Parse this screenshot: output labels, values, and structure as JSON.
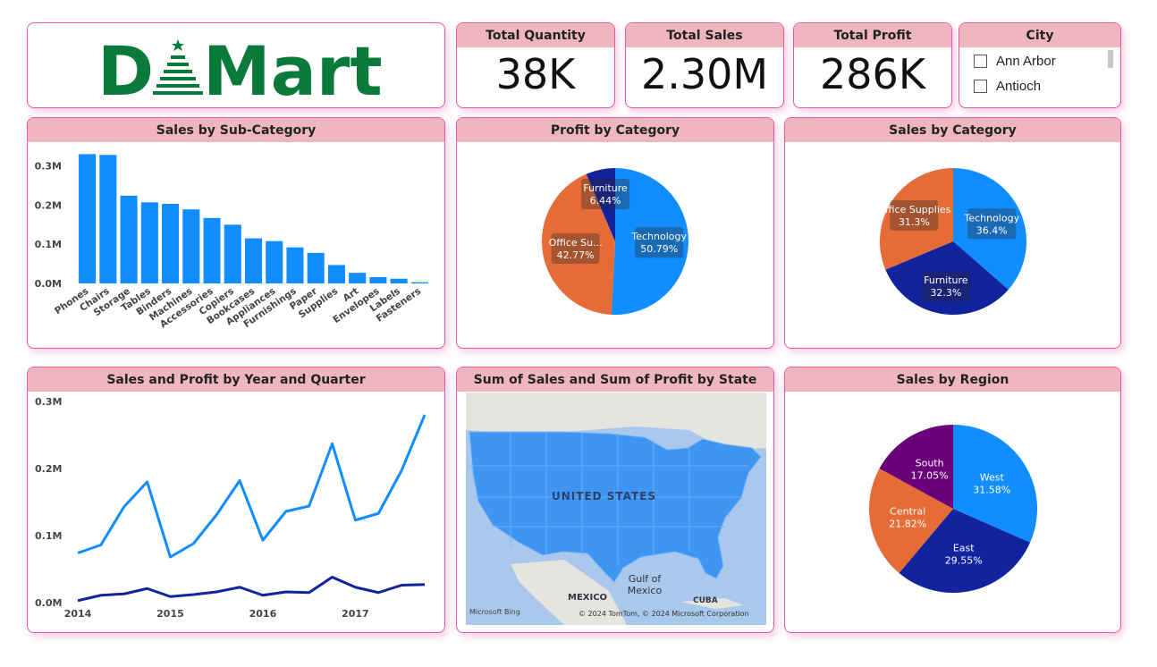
{
  "brand": {
    "logo_text": "DMart",
    "logo_color": "#0a7a3a"
  },
  "kpis": [
    {
      "label": "Total Quantity",
      "value": "38K"
    },
    {
      "label": "Total Sales",
      "value": "2.30M"
    },
    {
      "label": "Total Profit",
      "value": "286K"
    }
  ],
  "city_slicer": {
    "title": "City",
    "items": [
      "Ann Arbor",
      "Antioch"
    ]
  },
  "colors": {
    "blue": "#118dff",
    "navy": "#12239e",
    "orange": "#e66c37",
    "purple": "#6b007b",
    "header_bg": "#efb7bd",
    "border": "#e85aa8"
  },
  "map": {
    "title": "Sum of Sales and Sum of Profit by State",
    "country_label": "UNITED STATES",
    "gulf_label": "Gulf of Mexico",
    "mexico_label": "MEXICO",
    "cuba_label": "CUBA",
    "attribution_left": "Microsoft Bing",
    "attribution_right": "© 2024 TomTom, © 2024 Microsoft Corporation"
  },
  "chart_data": [
    {
      "type": "bar",
      "title": "Sales by Sub-Category",
      "categories": [
        "Phones",
        "Chairs",
        "Storage",
        "Tables",
        "Binders",
        "Machines",
        "Accessories",
        "Copiers",
        "Bookcases",
        "Appliances",
        "Furnishings",
        "Paper",
        "Supplies",
        "Art",
        "Envelopes",
        "Labels",
        "Fasteners"
      ],
      "values": [
        330000,
        328000,
        224000,
        207000,
        203000,
        189000,
        167000,
        150000,
        115000,
        108000,
        92000,
        78000,
        47000,
        27000,
        16000,
        12000,
        3000
      ],
      "yticks": [
        "0.0M",
        "0.1M",
        "0.2M",
        "0.3M"
      ],
      "ylim": [
        0,
        340000
      ]
    },
    {
      "type": "pie",
      "title": "Profit by Category",
      "slices": [
        {
          "name": "Technology",
          "pct": 50.79,
          "label": "50.79%",
          "color": "#118dff"
        },
        {
          "name": "Office Su...",
          "pct": 42.77,
          "label": "42.77%",
          "color": "#e66c37"
        },
        {
          "name": "Furniture",
          "pct": 6.44,
          "label": "6.44%",
          "color": "#12239e"
        }
      ]
    },
    {
      "type": "pie",
      "title": "Sales by Category",
      "slices": [
        {
          "name": "Technology",
          "pct": 36.4,
          "label": "36.4%",
          "color": "#118dff"
        },
        {
          "name": "Furniture",
          "pct": 32.3,
          "label": "32.3%",
          "color": "#12239e"
        },
        {
          "name": "Office Supplies",
          "pct": 31.3,
          "label": "31.3%",
          "color": "#e66c37"
        }
      ]
    },
    {
      "type": "line",
      "title": "Sales and Profit by Year and Quarter",
      "x_ticks": [
        "2014",
        "2015",
        "2016",
        "2017"
      ],
      "yticks": [
        "0.0M",
        "0.1M",
        "0.2M",
        "0.3M"
      ],
      "ylim": [
        0,
        300000
      ],
      "series": [
        {
          "name": "Sales",
          "color": "#118dff",
          "values": [
            74000,
            86000,
            143000,
            180000,
            68000,
            88000,
            131000,
            182000,
            93000,
            136000,
            144000,
            237000,
            123000,
            133000,
            197000,
            280000
          ]
        },
        {
          "name": "Profit",
          "color": "#12239e",
          "values": [
            3000,
            11000,
            13000,
            21000,
            9000,
            12000,
            16000,
            23000,
            11000,
            16000,
            15000,
            38000,
            23000,
            15000,
            26000,
            27000
          ]
        }
      ]
    },
    {
      "type": "pie",
      "title": "Sales by Region",
      "slices": [
        {
          "name": "West",
          "pct": 31.58,
          "label": "31.58%",
          "color": "#118dff"
        },
        {
          "name": "East",
          "pct": 29.55,
          "label": "29.55%",
          "color": "#12239e"
        },
        {
          "name": "Central",
          "pct": 21.82,
          "label": "21.82%",
          "color": "#e66c37"
        },
        {
          "name": "South",
          "pct": 17.05,
          "label": "17.05%",
          "color": "#6b007b"
        }
      ]
    }
  ]
}
